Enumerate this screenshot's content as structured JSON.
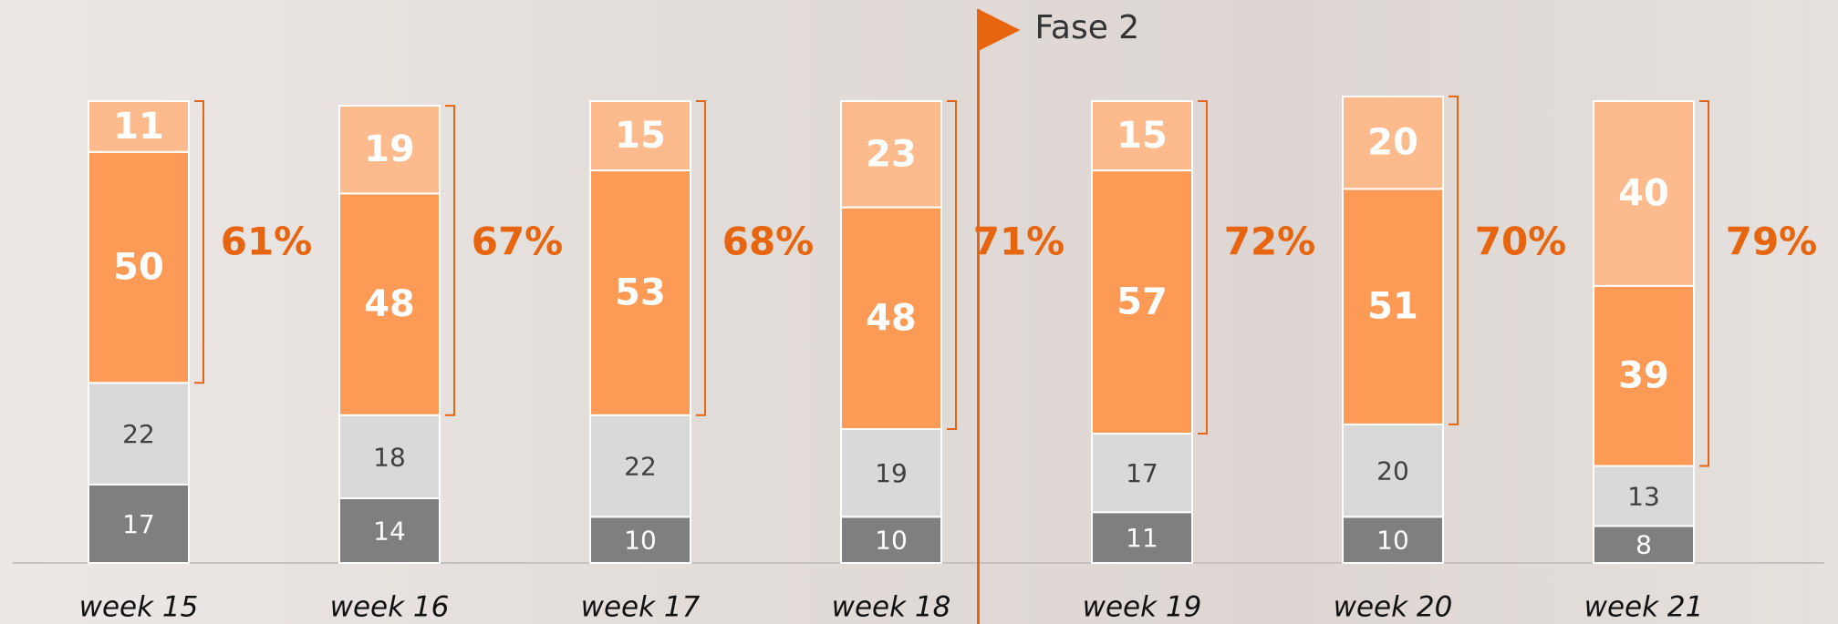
{
  "chart_data": {
    "type": "stacked_bar",
    "categories": [
      "week 15",
      "week 16",
      "week 17",
      "week 18",
      "week 19",
      "week 20",
      "week 21"
    ],
    "series": [
      {
        "color": "#7f7f7f",
        "label_color": "#ffffff",
        "values": [
          17,
          14,
          10,
          10,
          11,
          10,
          8
        ]
      },
      {
        "color": "#d9d9d9",
        "label_color": "#404040",
        "values": [
          22,
          18,
          22,
          19,
          17,
          20,
          13
        ]
      },
      {
        "color": "#fd9a55",
        "label_color": "#ffffff",
        "values": [
          50,
          48,
          53,
          48,
          57,
          51,
          39
        ]
      },
      {
        "color": "#fdba8c",
        "label_color": "#ffffff",
        "values": [
          11,
          19,
          15,
          23,
          15,
          20,
          40
        ]
      }
    ],
    "share": {
      "values": [
        61,
        67,
        68,
        71,
        72,
        70,
        79
      ],
      "value_labels": [
        "61%",
        "67%",
        "68%",
        "71%",
        "72%",
        "70%",
        "79%"
      ],
      "color": "#e8650f"
    },
    "ylim": [
      0,
      100
    ],
    "annotation": {
      "text": "Fase 2",
      "before": "week 19",
      "color": "#e8650f"
    }
  }
}
